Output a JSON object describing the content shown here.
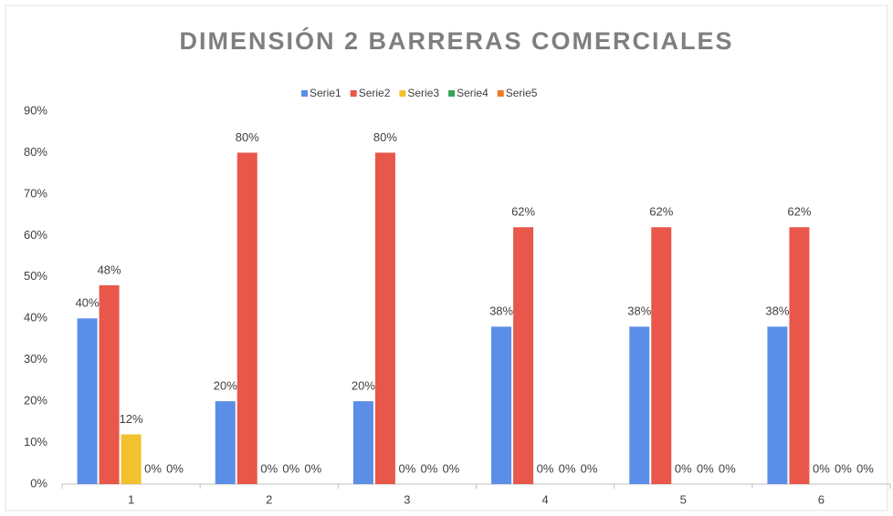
{
  "chart_data": {
    "type": "bar",
    "title": "DIMENSIÓN 2 BARRERAS COMERCIALES",
    "categories": [
      "1",
      "2",
      "3",
      "4",
      "5",
      "6"
    ],
    "series": [
      {
        "name": "Serie1",
        "color": "#5b8ee6",
        "values": [
          40,
          20,
          20,
          38,
          38,
          38
        ],
        "value_labels": [
          "40%",
          "20%",
          "20%",
          "38%",
          "38%",
          "38%"
        ]
      },
      {
        "name": "Serie2",
        "color": "#e8574a",
        "values": [
          48,
          80,
          80,
          62,
          62,
          62
        ],
        "value_labels": [
          "48%",
          "80%",
          "80%",
          "62%",
          "62%",
          "62%"
        ]
      },
      {
        "name": "Serie3",
        "color": "#f2c12e",
        "values": [
          12,
          0,
          0,
          0,
          0,
          0
        ],
        "value_labels": [
          "12%",
          "0%",
          "0%",
          "0%",
          "0%",
          "0%"
        ]
      },
      {
        "name": "Serie4",
        "color": "#3aa655",
        "values": [
          0,
          0,
          0,
          0,
          0,
          0
        ],
        "value_labels": [
          "0%",
          "0%",
          "0%",
          "0%",
          "0%",
          "0%"
        ]
      },
      {
        "name": "Serie5",
        "color": "#f07a2a",
        "values": [
          0,
          0,
          0,
          0,
          0,
          0
        ],
        "value_labels": [
          "0%",
          "0%",
          "0%",
          "0%",
          "0%",
          "0%"
        ]
      }
    ],
    "ylim": [
      0,
      90
    ],
    "yticks": [
      {
        "value": 0,
        "label": "0%"
      },
      {
        "value": 10,
        "label": "10%"
      },
      {
        "value": 20,
        "label": "20%"
      },
      {
        "value": 30,
        "label": "30%"
      },
      {
        "value": 40,
        "label": "40%"
      },
      {
        "value": 50,
        "label": "50%"
      },
      {
        "value": 60,
        "label": "60%"
      },
      {
        "value": 70,
        "label": "70%"
      },
      {
        "value": 80,
        "label": "80%"
      },
      {
        "value": 90,
        "label": "90%"
      }
    ],
    "grid": false,
    "legend": "top"
  }
}
